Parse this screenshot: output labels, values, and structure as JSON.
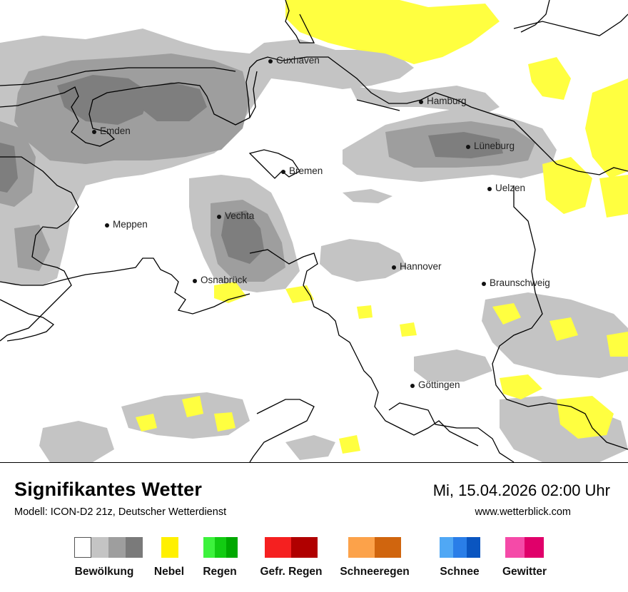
{
  "map": {
    "cities": [
      {
        "id": "cuxhaven",
        "name": "Cuxhaven"
      },
      {
        "id": "hamburg",
        "name": "Hamburg"
      },
      {
        "id": "emden",
        "name": "Emden"
      },
      {
        "id": "lueneburg",
        "name": "Lüneburg"
      },
      {
        "id": "bremen",
        "name": "Bremen"
      },
      {
        "id": "uelzen",
        "name": "Uelzen"
      },
      {
        "id": "vechta",
        "name": "Vechta"
      },
      {
        "id": "meppen",
        "name": "Meppen"
      },
      {
        "id": "hannover",
        "name": "Hannover"
      },
      {
        "id": "osnabrueck",
        "name": "Osnabrück"
      },
      {
        "id": "braunschweig",
        "name": "Braunschweig"
      },
      {
        "id": "goettingen",
        "name": "Göttingen"
      }
    ],
    "colors": {
      "cloud_light": "#c4c4c4",
      "cloud_medium": "#9e9e9e",
      "cloud_dark": "#808080",
      "fog": "#ffff40",
      "border": "#000000"
    }
  },
  "footer": {
    "title": "Signifikantes Wetter",
    "subtitle": "Modell: ICON-D2 21z, Deutscher Wetterdienst",
    "datetime": "Mi, 15.04.2026 02:00 Uhr",
    "website": "www.wetterblick.com"
  },
  "legend": [
    {
      "label": "Bewölkung",
      "colors": [
        "#ffffff",
        "#c4c4c4",
        "#9e9e9e",
        "#7a7a7a"
      ]
    },
    {
      "label": "Nebel",
      "colors": [
        "#fff000"
      ]
    },
    {
      "label": "Regen",
      "colors": [
        "#3cf23c",
        "#12cc12",
        "#00a800"
      ]
    },
    {
      "label": "Gefr. Regen",
      "colors": [
        "#f52020",
        "#b00000"
      ]
    },
    {
      "label": "Schneeregen",
      "colors": [
        "#fca24a",
        "#d0650e"
      ]
    },
    {
      "label": "Schnee",
      "colors": [
        "#50a8f5",
        "#2a7ee8",
        "#0a55c0"
      ]
    },
    {
      "label": "Gewitter",
      "colors": [
        "#f54aa8",
        "#e0006a"
      ]
    }
  ]
}
